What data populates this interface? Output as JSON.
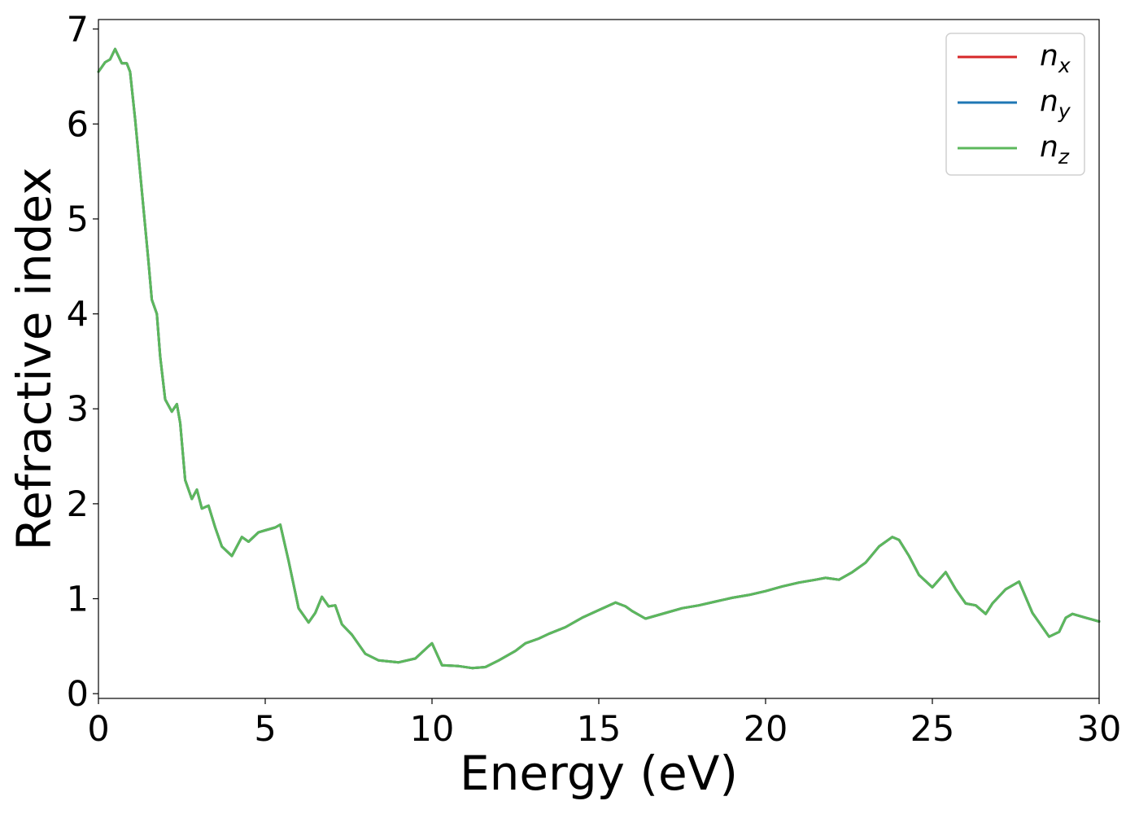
{
  "chart_data": {
    "type": "line",
    "xlabel": "Energy (eV)",
    "ylabel": "Refractive index",
    "xlim": [
      0,
      30
    ],
    "ylim": [
      -0.05,
      7.1
    ],
    "xticks": [
      0,
      5,
      10,
      15,
      20,
      25,
      30
    ],
    "xtick_labels": [
      "0",
      "5",
      "10",
      "15",
      "20",
      "25",
      "30"
    ],
    "yticks": [
      0,
      1,
      2,
      3,
      4,
      5,
      6,
      7
    ],
    "ytick_labels": [
      "0",
      "1",
      "2",
      "3",
      "4",
      "5",
      "6",
      "7"
    ],
    "grid": false,
    "legend_position": "top-right",
    "x": [
      0,
      0.2,
      0.35,
      0.5,
      0.55,
      0.7,
      0.85,
      0.95,
      1.1,
      1.3,
      1.5,
      1.6,
      1.75,
      1.85,
      2.0,
      2.2,
      2.35,
      2.45,
      2.6,
      2.8,
      2.95,
      3.1,
      3.3,
      3.5,
      3.7,
      4.0,
      4.3,
      4.5,
      4.8,
      5.0,
      5.3,
      5.45,
      5.7,
      6.0,
      6.3,
      6.5,
      6.7,
      6.9,
      7.1,
      7.3,
      7.6,
      8.0,
      8.4,
      9.0,
      9.5,
      9.9,
      10.0,
      10.3,
      10.8,
      11.2,
      11.6,
      12.0,
      12.5,
      12.8,
      13.2,
      13.5,
      14.0,
      14.5,
      15.0,
      15.5,
      15.8,
      16.0,
      16.4,
      17.0,
      17.5,
      18.0,
      18.5,
      19.0,
      19.5,
      20.0,
      20.5,
      21.0,
      21.5,
      21.8,
      22.2,
      22.6,
      23.0,
      23.4,
      23.8,
      24.0,
      24.3,
      24.6,
      25.0,
      25.4,
      25.7,
      26.0,
      26.3,
      26.6,
      26.8,
      27.2,
      27.6,
      28.0,
      28.5,
      28.8,
      29.0,
      29.2,
      29.6,
      30.0
    ],
    "series": [
      {
        "name": "n_x",
        "color": "#d62728",
        "values": [
          6.55,
          6.65,
          6.68,
          6.79,
          6.75,
          6.64,
          6.64,
          6.55,
          6.05,
          5.3,
          4.55,
          4.15,
          4.0,
          3.55,
          3.1,
          2.97,
          3.05,
          2.85,
          2.25,
          2.05,
          2.15,
          1.95,
          1.98,
          1.75,
          1.55,
          1.45,
          1.65,
          1.6,
          1.7,
          1.72,
          1.75,
          1.78,
          1.4,
          0.9,
          0.75,
          0.85,
          1.02,
          0.92,
          0.93,
          0.73,
          0.62,
          0.42,
          0.35,
          0.33,
          0.37,
          0.5,
          0.53,
          0.3,
          0.29,
          0.27,
          0.28,
          0.35,
          0.45,
          0.53,
          0.58,
          0.63,
          0.7,
          0.8,
          0.88,
          0.96,
          0.92,
          0.87,
          0.79,
          0.85,
          0.9,
          0.93,
          0.97,
          1.01,
          1.04,
          1.08,
          1.13,
          1.17,
          1.2,
          1.22,
          1.2,
          1.28,
          1.38,
          1.55,
          1.65,
          1.62,
          1.45,
          1.25,
          1.12,
          1.28,
          1.1,
          0.95,
          0.93,
          0.84,
          0.95,
          1.1,
          1.18,
          0.85,
          0.6,
          0.65,
          0.8,
          0.84,
          0.8,
          0.76
        ]
      },
      {
        "name": "n_y",
        "color": "#1f77b4",
        "values": [
          6.55,
          6.65,
          6.68,
          6.79,
          6.75,
          6.64,
          6.64,
          6.55,
          6.05,
          5.3,
          4.55,
          4.15,
          4.0,
          3.55,
          3.1,
          2.97,
          3.05,
          2.85,
          2.25,
          2.05,
          2.15,
          1.95,
          1.98,
          1.75,
          1.55,
          1.45,
          1.65,
          1.6,
          1.7,
          1.72,
          1.75,
          1.78,
          1.4,
          0.9,
          0.75,
          0.85,
          1.02,
          0.92,
          0.93,
          0.73,
          0.62,
          0.42,
          0.35,
          0.33,
          0.37,
          0.5,
          0.53,
          0.3,
          0.29,
          0.27,
          0.28,
          0.35,
          0.45,
          0.53,
          0.58,
          0.63,
          0.7,
          0.8,
          0.88,
          0.96,
          0.92,
          0.87,
          0.79,
          0.85,
          0.9,
          0.93,
          0.97,
          1.01,
          1.04,
          1.08,
          1.13,
          1.17,
          1.2,
          1.22,
          1.2,
          1.28,
          1.38,
          1.55,
          1.65,
          1.62,
          1.45,
          1.25,
          1.12,
          1.28,
          1.1,
          0.95,
          0.93,
          0.84,
          0.95,
          1.1,
          1.18,
          0.85,
          0.6,
          0.65,
          0.8,
          0.84,
          0.8,
          0.76
        ]
      },
      {
        "name": "n_z",
        "color": "#5cb85c",
        "values": [
          6.55,
          6.65,
          6.68,
          6.79,
          6.75,
          6.64,
          6.64,
          6.55,
          6.05,
          5.3,
          4.55,
          4.15,
          4.0,
          3.55,
          3.1,
          2.97,
          3.05,
          2.85,
          2.25,
          2.05,
          2.15,
          1.95,
          1.98,
          1.75,
          1.55,
          1.45,
          1.65,
          1.6,
          1.7,
          1.72,
          1.75,
          1.78,
          1.4,
          0.9,
          0.75,
          0.85,
          1.02,
          0.92,
          0.93,
          0.73,
          0.62,
          0.42,
          0.35,
          0.33,
          0.37,
          0.5,
          0.53,
          0.3,
          0.29,
          0.27,
          0.28,
          0.35,
          0.45,
          0.53,
          0.58,
          0.63,
          0.7,
          0.8,
          0.88,
          0.96,
          0.92,
          0.87,
          0.79,
          0.85,
          0.9,
          0.93,
          0.97,
          1.01,
          1.04,
          1.08,
          1.13,
          1.17,
          1.2,
          1.22,
          1.2,
          1.28,
          1.38,
          1.55,
          1.65,
          1.62,
          1.45,
          1.25,
          1.12,
          1.28,
          1.1,
          0.95,
          0.93,
          0.84,
          0.95,
          1.1,
          1.18,
          0.85,
          0.6,
          0.65,
          0.8,
          0.84,
          0.8,
          0.76
        ]
      }
    ],
    "legend": [
      {
        "base": "n",
        "sub": "x",
        "color": "#d62728"
      },
      {
        "base": "n",
        "sub": "y",
        "color": "#1f77b4"
      },
      {
        "base": "n",
        "sub": "z",
        "color": "#5cb85c"
      }
    ]
  }
}
